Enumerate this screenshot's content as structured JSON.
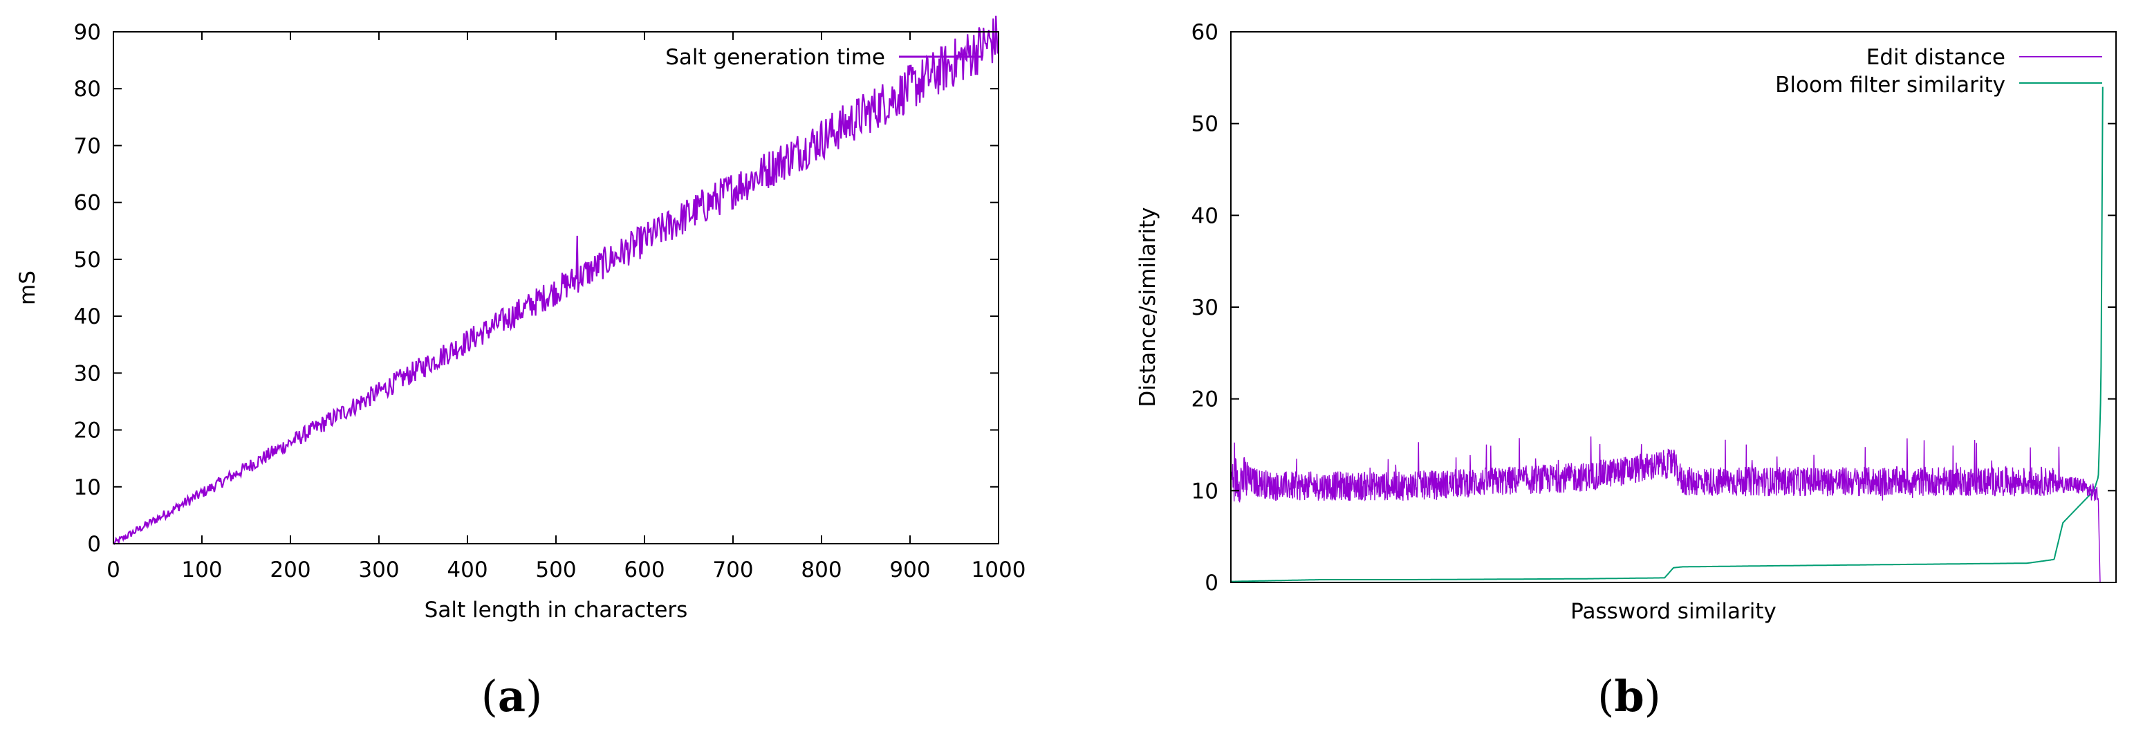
{
  "chart_data": [
    {
      "type": "line",
      "caption": "(a)",
      "caption_letter": "a",
      "xlabel": "Salt length in characters",
      "ylabel": "mS",
      "xlim": [
        0,
        1000
      ],
      "ylim": [
        0,
        90
      ],
      "xticks": [
        0,
        100,
        200,
        300,
        400,
        500,
        600,
        700,
        800,
        900,
        1000
      ],
      "yticks": [
        0,
        10,
        20,
        30,
        40,
        50,
        60,
        70,
        80,
        90
      ],
      "grid": false,
      "legend": "top-right",
      "series": [
        {
          "name": "Salt generation time",
          "color": "#9400d3",
          "x": [
            0,
            100,
            200,
            300,
            400,
            500,
            600,
            700,
            800,
            900,
            1000
          ],
          "y": [
            0,
            8.9,
            17.8,
            26.7,
            35.6,
            44.5,
            53.4,
            62.3,
            71.2,
            80.1,
            89
          ]
        }
      ]
    },
    {
      "type": "line",
      "caption": "(b)",
      "caption_letter": "b",
      "xlabel": "Password similarity",
      "ylabel": "Distance/similarity",
      "ylim": [
        0,
        60
      ],
      "yticks": [
        0,
        10,
        20,
        30,
        40,
        50,
        60
      ],
      "grid": false,
      "legend": "top-right",
      "series": [
        {
          "name": "Edit distance",
          "color": "#9400d3",
          "x": [
            0,
            0.05,
            0.1,
            0.2,
            0.3,
            0.4,
            0.5,
            0.51,
            0.6,
            0.7,
            0.8,
            0.9,
            0.92,
            0.96,
            0.98
          ],
          "y": [
            11.5,
            10.5,
            10.5,
            10.5,
            11,
            11.5,
            13,
            11,
            11,
            11,
            11,
            11,
            11,
            10.5,
            9.5
          ]
        },
        {
          "name": "Bloom filter similarity",
          "color": "#009e73",
          "x": [
            0,
            0.05,
            0.1,
            0.2,
            0.3,
            0.4,
            0.49,
            0.5,
            0.51,
            0.6,
            0.7,
            0.8,
            0.9,
            0.93,
            0.94,
            0.96,
            0.975,
            0.98,
            0.983,
            0.985
          ],
          "y": [
            0.1,
            0.2,
            0.3,
            0.3,
            0.35,
            0.4,
            0.5,
            1.6,
            1.7,
            1.8,
            1.9,
            2.0,
            2.1,
            2.5,
            6.5,
            8.5,
            10,
            11.5,
            21,
            54
          ]
        }
      ]
    }
  ]
}
